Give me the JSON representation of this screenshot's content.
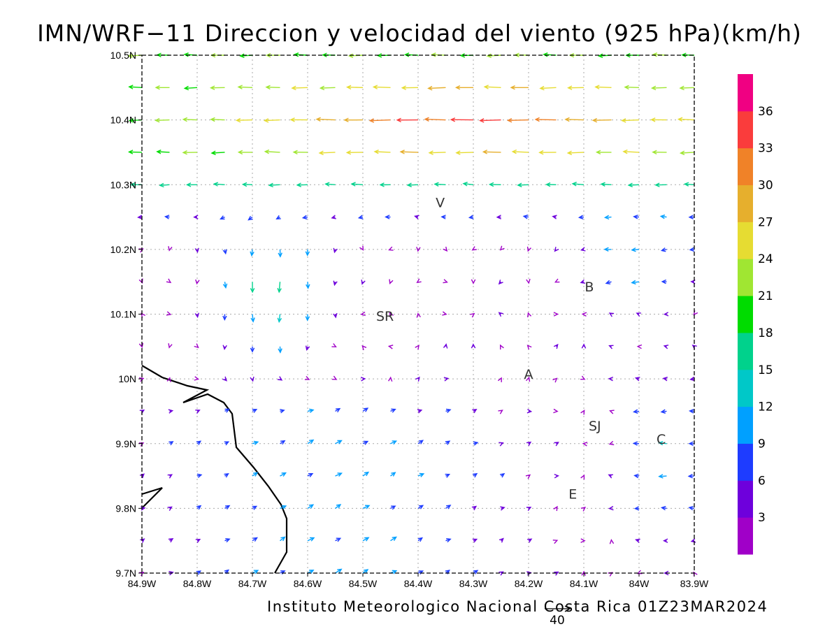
{
  "title": "IMN/WRF−11 Direccion y velocidad del viento (925 hPa)(km/h)",
  "footer": "Instituto Meteorologico Nacional Costa Rica 01Z23MAR2024",
  "reference_vector": {
    "label": "40",
    "value": 40
  },
  "chart_data": {
    "type": "vector-field",
    "units": "km/h",
    "level": "925 hPa",
    "x_range": [
      -84.9,
      -83.9
    ],
    "y_range": [
      9.7,
      10.5
    ],
    "grid": true,
    "x_ticks": [
      "84.9W",
      "84.8W",
      "84.7W",
      "84.6W",
      "84.5W",
      "84.4W",
      "84.3W",
      "84.2W",
      "84.1W",
      "84W",
      "83.9W"
    ],
    "y_ticks": [
      "9.7N",
      "9.8N",
      "9.9N",
      "10N",
      "10.1N",
      "10.2N",
      "10.3N",
      "10.4N",
      "10.5N"
    ],
    "colorbar": {
      "labels": [
        "3",
        "6",
        "9",
        "12",
        "15",
        "18",
        "21",
        "24",
        "27",
        "30",
        "33",
        "36"
      ],
      "colors": [
        "#a000c8",
        "#6e00dc",
        "#1e3cff",
        "#00a0ff",
        "#00c8c8",
        "#00d28c",
        "#00dc00",
        "#a0e632",
        "#e6dc32",
        "#e6af2d",
        "#f08228",
        "#fa3c3c",
        "#f00082"
      ]
    },
    "places": [
      {
        "label": "V",
        "lon": -84.36,
        "lat": 10.265
      },
      {
        "label": "SR",
        "lon": -84.46,
        "lat": 10.09
      },
      {
        "label": "B",
        "lon": -84.09,
        "lat": 10.135
      },
      {
        "label": "A",
        "lon": -84.2,
        "lat": 10.0
      },
      {
        "label": "SJ",
        "lon": -84.08,
        "lat": 9.92
      },
      {
        "label": "C",
        "lon": -83.96,
        "lat": 9.9
      },
      {
        "label": "E",
        "lon": -84.12,
        "lat": 9.815
      }
    ]
  }
}
